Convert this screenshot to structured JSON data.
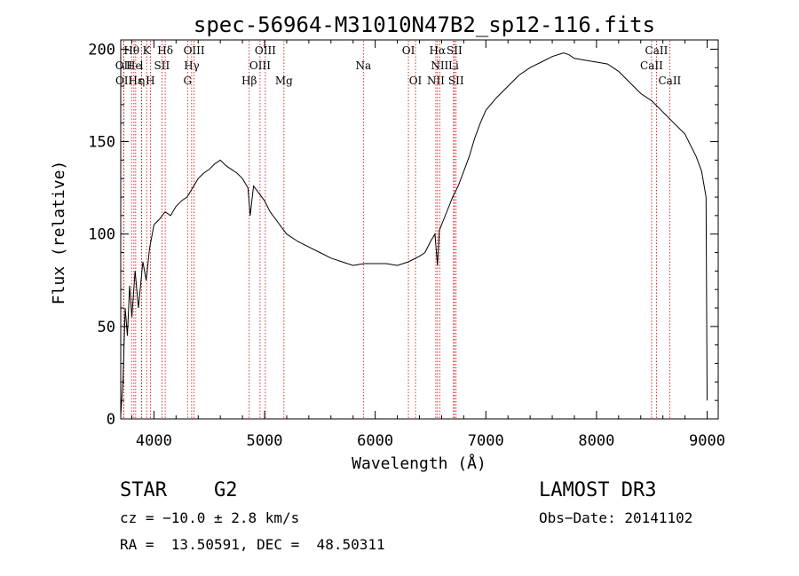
{
  "chart_data": {
    "type": "line",
    "title": "spec-56964-M31010N47B2_sp12-116.fits",
    "xlabel": "Wavelength (Å)",
    "ylabel": "Flux (relative)",
    "xlim": [
      3700,
      9100
    ],
    "ylim": [
      0,
      205
    ],
    "xticks": [
      4000,
      5000,
      6000,
      7000,
      8000,
      9000
    ],
    "yticks": [
      0,
      50,
      100,
      150,
      200
    ],
    "grid": false,
    "series": [
      {
        "x": [
          3700,
          3720,
          3740,
          3760,
          3780,
          3800,
          3830,
          3860,
          3900,
          3930,
          3960,
          4000,
          4050,
          4100,
          4150,
          4200,
          4250,
          4300,
          4350,
          4400,
          4450,
          4500,
          4550,
          4600,
          4650,
          4700,
          4750,
          4800,
          4850,
          4870,
          4900,
          4950,
          5000,
          5050,
          5100,
          5150,
          5200,
          5300,
          5400,
          5500,
          5600,
          5700,
          5800,
          5900,
          6000,
          6100,
          6200,
          6300,
          6400,
          6450,
          6500,
          6540,
          6563,
          6580,
          6620,
          6660,
          6700,
          6750,
          6800,
          6850,
          6900,
          6950,
          7000,
          7100,
          7200,
          7300,
          7400,
          7500,
          7600,
          7700,
          7750,
          7800,
          7900,
          8000,
          8100,
          8200,
          8300,
          8400,
          8500,
          8600,
          8700,
          8800,
          8850,
          8900,
          8950,
          8990,
          9000
        ],
        "y": [
          2,
          20,
          60,
          45,
          72,
          55,
          80,
          60,
          85,
          75,
          92,
          105,
          108,
          112,
          110,
          115,
          118,
          120,
          125,
          130,
          133,
          135,
          138,
          140,
          137,
          135,
          133,
          130,
          125,
          110,
          126,
          122,
          118,
          112,
          108,
          104,
          100,
          96,
          93,
          90,
          87,
          85,
          83,
          84,
          84,
          84,
          83,
          85,
          88,
          90,
          96,
          100,
          83,
          102,
          108,
          114,
          120,
          126,
          134,
          142,
          152,
          160,
          167,
          174,
          180,
          186,
          190,
          193,
          196,
          198,
          197,
          195,
          194,
          193,
          192,
          188,
          182,
          176,
          172,
          166,
          160,
          154,
          148,
          142,
          134,
          120,
          10
        ]
      }
    ],
    "emission_lines": [
      {
        "label": "Hθ",
        "x": 3798,
        "row": 0
      },
      {
        "label": "K",
        "x": 3934,
        "row": 0
      },
      {
        "label": "Hδ",
        "x": 4102,
        "row": 0
      },
      {
        "label": "OIII",
        "x": 4363,
        "row": 0
      },
      {
        "label": "OIII",
        "x": 5007,
        "row": 0
      },
      {
        "label": "OI",
        "x": 6300,
        "row": 0
      },
      {
        "label": "Hα",
        "x": 6563,
        "row": 0
      },
      {
        "label": "SII",
        "x": 6716,
        "row": 0
      },
      {
        "label": "CaII",
        "x": 8542,
        "row": 0
      },
      {
        "label": "OII",
        "x": 3727,
        "row": 1
      },
      {
        "label": "He",
        "x": 3819,
        "row": 1
      },
      {
        "label": "l",
        "x": 3889,
        "row": 1
      },
      {
        "label": "SII",
        "x": 4072,
        "row": 1
      },
      {
        "label": "Hγ",
        "x": 4341,
        "row": 1
      },
      {
        "label": "OIII",
        "x": 4959,
        "row": 1
      },
      {
        "label": "Na",
        "x": 5893,
        "row": 1
      },
      {
        "label": "NII",
        "x": 6583,
        "row": 1
      },
      {
        "label": "Li",
        "x": 6708,
        "row": 1
      },
      {
        "label": "CaII",
        "x": 8498,
        "row": 1
      },
      {
        "label": "OII",
        "x": 3729,
        "row": 2
      },
      {
        "label": "Hε",
        "x": 3835,
        "row": 2
      },
      {
        "label": "η",
        "x": 3889,
        "row": 2
      },
      {
        "label": "H",
        "x": 3968,
        "row": 2
      },
      {
        "label": "G",
        "x": 4304,
        "row": 2
      },
      {
        "label": "Hβ",
        "x": 4861,
        "row": 2
      },
      {
        "label": "Mg",
        "x": 5175,
        "row": 2
      },
      {
        "label": "OI",
        "x": 6364,
        "row": 2
      },
      {
        "label": "NII",
        "x": 6548,
        "row": 2
      },
      {
        "label": "SII",
        "x": 6731,
        "row": 2
      },
      {
        "label": "CaII",
        "x": 8662,
        "row": 2
      }
    ],
    "line_color": "#000000",
    "marker_color": "#d00000"
  },
  "info": {
    "object_class": "STAR",
    "subclass": "G2",
    "survey": "LAMOST DR3",
    "cz": "cz = −10.0 ± 2.8 km/s",
    "obs_date": "Obs−Date: 20141102",
    "coords": "RA =  13.50591, DEC =  48.50311"
  }
}
